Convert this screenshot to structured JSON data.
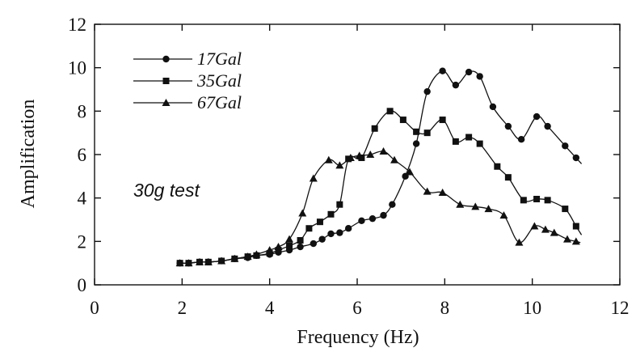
{
  "chart_data": {
    "type": "line",
    "title": "",
    "xlabel": "Frequency (Hz)",
    "ylabel": "Amplification",
    "xlim": [
      0,
      12
    ],
    "ylim": [
      0,
      12
    ],
    "xticks": [
      0,
      2,
      4,
      6,
      8,
      10,
      12
    ],
    "yticks": [
      0,
      2,
      4,
      6,
      8,
      10,
      12
    ],
    "grid": false,
    "legend_position": "top-left",
    "annotation": "30g test",
    "series": [
      {
        "name": "17Gal",
        "marker": "circle",
        "x": [
          1.95,
          2.15,
          2.4,
          2.6,
          2.9,
          3.2,
          3.5,
          3.7,
          4.0,
          4.2,
          4.45,
          4.7,
          5.0,
          5.2,
          5.4,
          5.6,
          5.8,
          6.1,
          6.35,
          6.6,
          6.8,
          7.1,
          7.35,
          7.6,
          7.95,
          8.25,
          8.55,
          8.8,
          9.1,
          9.45,
          9.75,
          10.1,
          10.35,
          10.75,
          11.0
        ],
        "y": [
          1.0,
          1.0,
          1.05,
          1.05,
          1.1,
          1.2,
          1.25,
          1.35,
          1.4,
          1.5,
          1.6,
          1.75,
          1.9,
          2.1,
          2.35,
          2.4,
          2.6,
          2.95,
          3.05,
          3.2,
          3.7,
          5.0,
          6.5,
          8.9,
          9.85,
          9.2,
          9.8,
          9.6,
          8.2,
          7.3,
          6.7,
          7.75,
          7.3,
          6.4,
          5.85
        ]
      },
      {
        "name": "35Gal",
        "marker": "square",
        "x": [
          1.95,
          2.15,
          2.4,
          2.6,
          2.9,
          3.2,
          3.5,
          3.7,
          4.0,
          4.2,
          4.45,
          4.7,
          4.9,
          5.15,
          5.4,
          5.6,
          5.8,
          6.1,
          6.4,
          6.75,
          7.05,
          7.35,
          7.6,
          7.95,
          8.25,
          8.55,
          8.8,
          9.2,
          9.45,
          9.8,
          10.1,
          10.35,
          10.75,
          11.0
        ],
        "y": [
          1.0,
          1.0,
          1.05,
          1.05,
          1.1,
          1.2,
          1.3,
          1.35,
          1.45,
          1.6,
          1.8,
          2.05,
          2.6,
          2.9,
          3.25,
          3.7,
          5.8,
          5.85,
          7.2,
          8.0,
          7.6,
          7.05,
          7.0,
          7.6,
          6.6,
          6.8,
          6.5,
          5.45,
          4.95,
          3.9,
          3.95,
          3.9,
          3.5,
          2.7
        ]
      },
      {
        "name": "67Gal",
        "marker": "triangle",
        "x": [
          1.95,
          2.15,
          2.4,
          2.6,
          2.9,
          3.2,
          3.5,
          3.7,
          4.0,
          4.2,
          4.45,
          4.75,
          5.0,
          5.35,
          5.6,
          5.85,
          6.05,
          6.3,
          6.6,
          6.85,
          7.2,
          7.6,
          7.95,
          8.35,
          8.7,
          9.0,
          9.35,
          9.7,
          10.05,
          10.3,
          10.5,
          10.8,
          11.0
        ],
        "y": [
          1.0,
          1.0,
          1.05,
          1.05,
          1.1,
          1.2,
          1.3,
          1.4,
          1.6,
          1.75,
          2.1,
          3.3,
          4.9,
          5.75,
          5.5,
          5.85,
          5.95,
          6.0,
          6.15,
          5.75,
          5.2,
          4.3,
          4.25,
          3.7,
          3.6,
          3.5,
          3.2,
          1.95,
          2.7,
          2.55,
          2.4,
          2.1,
          2.0
        ]
      }
    ]
  },
  "legend": {
    "items": [
      "17Gal",
      "35Gal",
      "67Gal"
    ]
  },
  "colors": {
    "line": "#111111",
    "marker": "#111111",
    "background": "#ffffff"
  }
}
